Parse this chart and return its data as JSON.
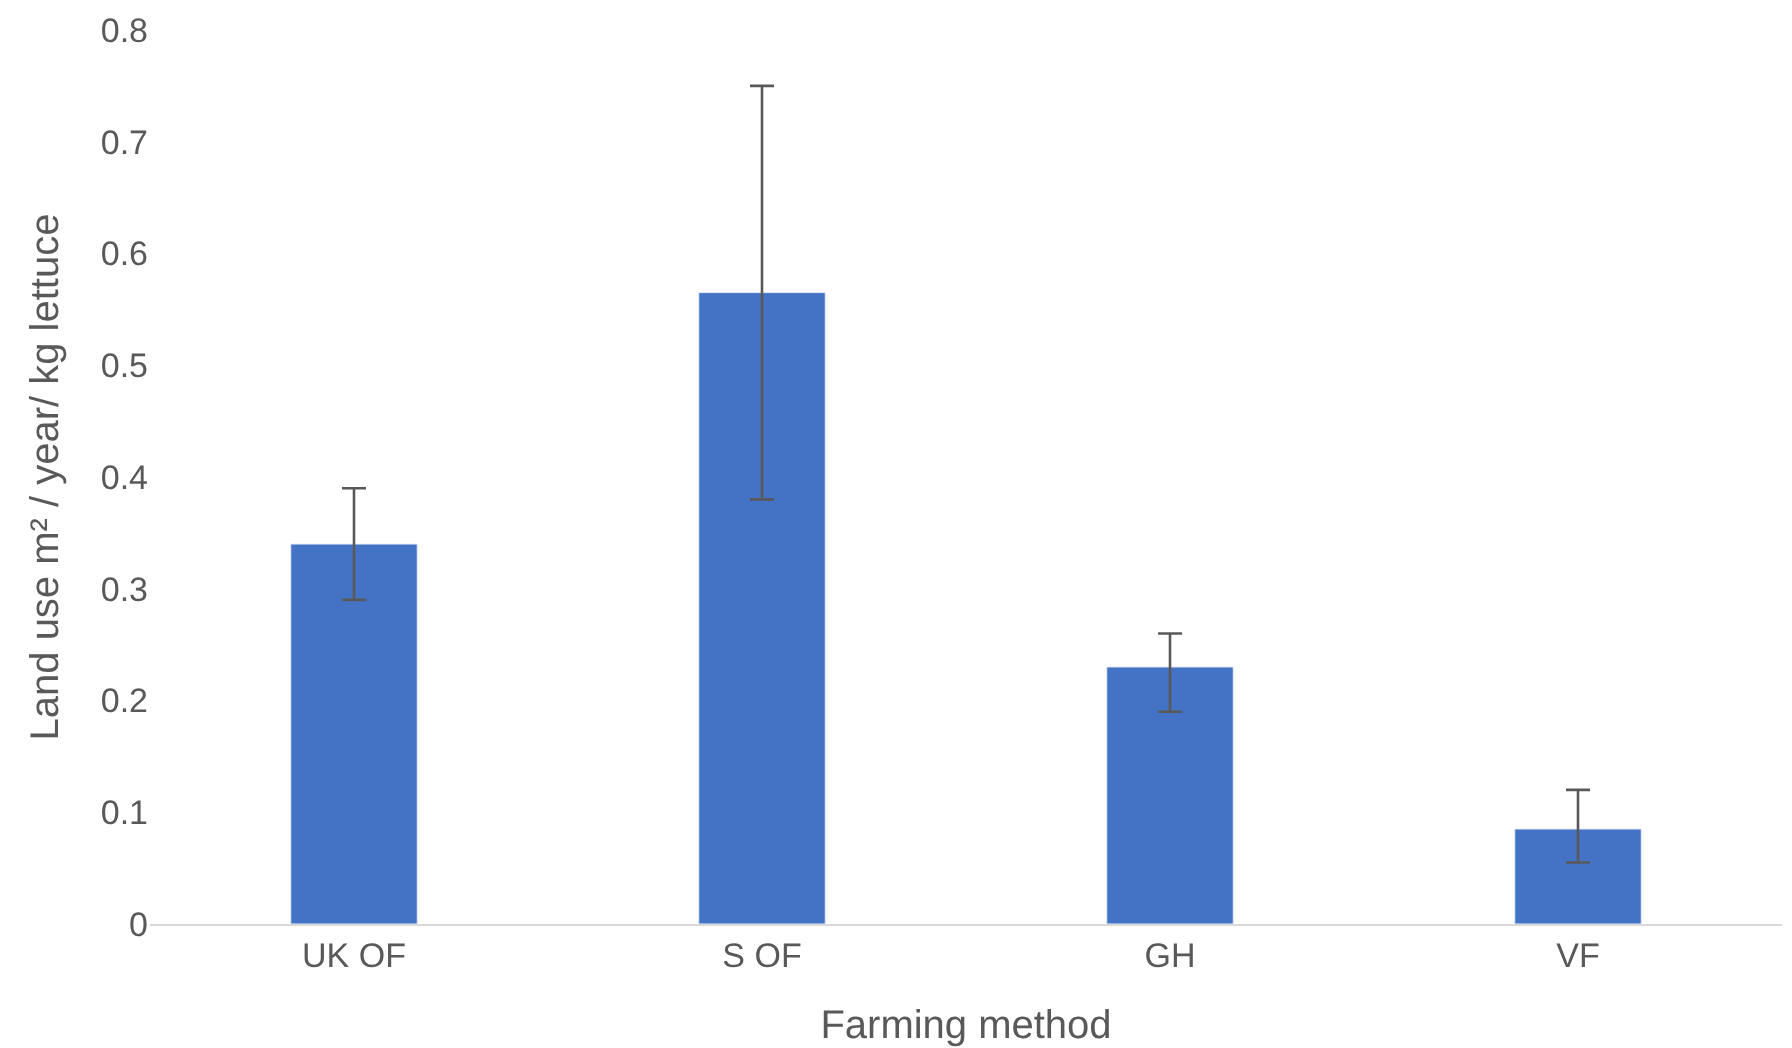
{
  "chart_data": {
    "type": "bar",
    "categories": [
      "UK OF",
      "S OF",
      "GH",
      "VF"
    ],
    "values": [
      0.34,
      0.565,
      0.23,
      0.085
    ],
    "errors": [
      [
        0.29,
        0.39
      ],
      [
        0.38,
        0.75
      ],
      [
        0.19,
        0.26
      ],
      [
        0.055,
        0.12
      ]
    ],
    "color": "#4472c4",
    "xlabel": "Farming method",
    "ylabel": "Land use m² / year/ kg lettuce",
    "ylim": [
      0,
      0.8
    ],
    "yticks": [
      0,
      0.1,
      0.2,
      0.3,
      0.4,
      0.5,
      0.6,
      0.7,
      0.8
    ],
    "legend": false
  }
}
